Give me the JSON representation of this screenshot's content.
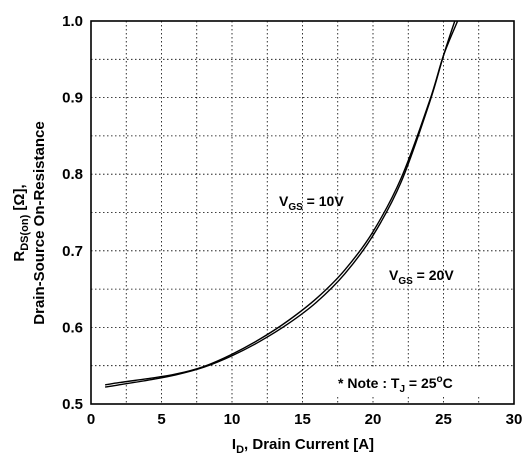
{
  "chart_data": {
    "type": "line",
    "xlim": [
      0,
      30
    ],
    "ylim": [
      0.5,
      1.0
    ],
    "x_ticks": [
      0,
      5,
      10,
      15,
      20,
      25,
      30
    ],
    "y_ticks": [
      0.5,
      0.6,
      0.7,
      0.8,
      0.9,
      1.0
    ],
    "y_minor_ticks": [
      0.55,
      0.65,
      0.75,
      0.85,
      0.95
    ],
    "grid": true,
    "xlabel": {
      "main": "I",
      "sub": "D",
      "rest": ", Drain Current [A]"
    },
    "ylabel": {
      "line1_main": "R",
      "line1_sub": "DS(on)",
      "line1_rest": " [Ω],",
      "line2": "Drain-Source On-Resistance"
    },
    "series": [
      {
        "label_main": "V",
        "label_sub": "GS",
        "label_rest": " = 10V",
        "x": [
          1,
          2,
          4,
          6,
          8,
          10,
          12,
          14,
          16,
          18,
          20,
          22,
          24,
          25,
          26
        ],
        "y": [
          0.525,
          0.528,
          0.533,
          0.539,
          0.549,
          0.565,
          0.585,
          0.609,
          0.638,
          0.675,
          0.725,
          0.795,
          0.895,
          0.955,
          1.0
        ]
      },
      {
        "label_main": "V",
        "label_sub": "GS",
        "label_rest": " = 20V",
        "x": [
          1,
          2,
          4,
          6,
          8,
          10,
          12,
          14,
          16,
          18,
          20,
          22,
          24,
          25,
          25.8
        ],
        "y": [
          0.522,
          0.525,
          0.531,
          0.538,
          0.548,
          0.563,
          0.582,
          0.605,
          0.633,
          0.67,
          0.72,
          0.79,
          0.893,
          0.955,
          1.0
        ]
      }
    ],
    "note": {
      "prefix": "* Note : T",
      "sub": "J",
      "value": " = 25",
      "sup": "o",
      "unit": "C"
    }
  }
}
